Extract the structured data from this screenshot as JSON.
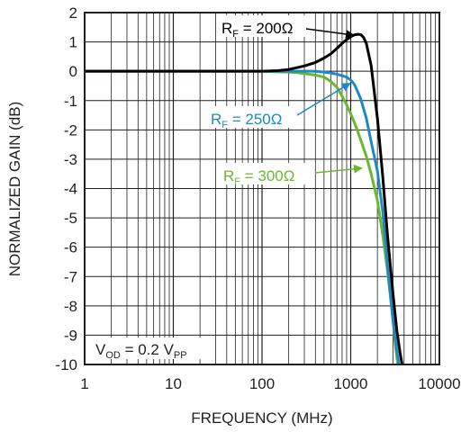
{
  "chart_data": {
    "type": "line",
    "xlabel": "FREQUENCY (MHz)",
    "ylabel": "NORMALIZED GAIN (dB)",
    "xscale": "log",
    "xlim": [
      1,
      10000
    ],
    "ylim": [
      -10,
      2
    ],
    "grid": true,
    "x_ticks": [
      "1",
      "10",
      "100",
      "1000",
      "10000"
    ],
    "y_ticks": [
      "2",
      "1",
      "0",
      "-1",
      "-2",
      "-3",
      "-4",
      "-5",
      "-6",
      "-7",
      "-8",
      "-9",
      "-10"
    ],
    "series": [
      {
        "label": {
          "main": "R",
          "sub": "F",
          "rest": " = 200Ω"
        },
        "color": "#000000",
        "x": [
          1,
          10,
          100,
          150,
          200,
          300,
          400,
          500,
          600,
          700,
          800,
          900,
          1000,
          1100,
          1200,
          1300,
          1400,
          1500,
          1700,
          2000,
          2300,
          2600,
          3000,
          3300,
          3600,
          3800
        ],
        "y": [
          0,
          0,
          0,
          0.02,
          0.06,
          0.18,
          0.3,
          0.45,
          0.6,
          0.78,
          0.95,
          1.08,
          1.18,
          1.24,
          1.26,
          1.25,
          1.15,
          0.95,
          0.2,
          -1.6,
          -3.6,
          -5.6,
          -7.6,
          -8.8,
          -9.6,
          -10
        ]
      },
      {
        "label": {
          "main": "R",
          "sub": "F",
          "rest": " = 250Ω"
        },
        "color": "#1b8ac4",
        "x": [
          1,
          10,
          100,
          200,
          300,
          400,
          500,
          600,
          700,
          800,
          900,
          1000,
          1100,
          1200,
          1300,
          1500,
          1700,
          2000,
          2300,
          2600,
          3000,
          3300,
          3500
        ],
        "y": [
          0,
          0,
          0,
          0,
          0,
          0,
          -0.03,
          -0.06,
          -0.1,
          -0.15,
          -0.2,
          -0.3,
          -0.45,
          -0.7,
          -0.95,
          -1.6,
          -2.4,
          -3.4,
          -4.8,
          -6.6,
          -8.5,
          -9.5,
          -10
        ]
      },
      {
        "label": {
          "main": "R",
          "sub": "F",
          "rest": " = 300Ω"
        },
        "color": "#6ab82f",
        "x": [
          1,
          10,
          100,
          150,
          200,
          250,
          300,
          400,
          500,
          600,
          700,
          800,
          900,
          1000,
          1100,
          1200,
          1300,
          1500,
          1700,
          2000,
          2300,
          2600,
          3000,
          3200,
          3400
        ],
        "y": [
          0,
          0,
          0,
          -0.02,
          -0.03,
          -0.05,
          -0.08,
          -0.13,
          -0.2,
          -0.35,
          -0.55,
          -0.85,
          -1.15,
          -1.45,
          -1.75,
          -2.05,
          -2.35,
          -2.9,
          -3.5,
          -4.4,
          -5.6,
          -6.8,
          -8.5,
          -9.4,
          -10
        ]
      }
    ],
    "annotations": {
      "condition": {
        "main": "V",
        "sub": "OD",
        "mid": " = 0.2 V",
        "sub2": "PP"
      }
    }
  }
}
